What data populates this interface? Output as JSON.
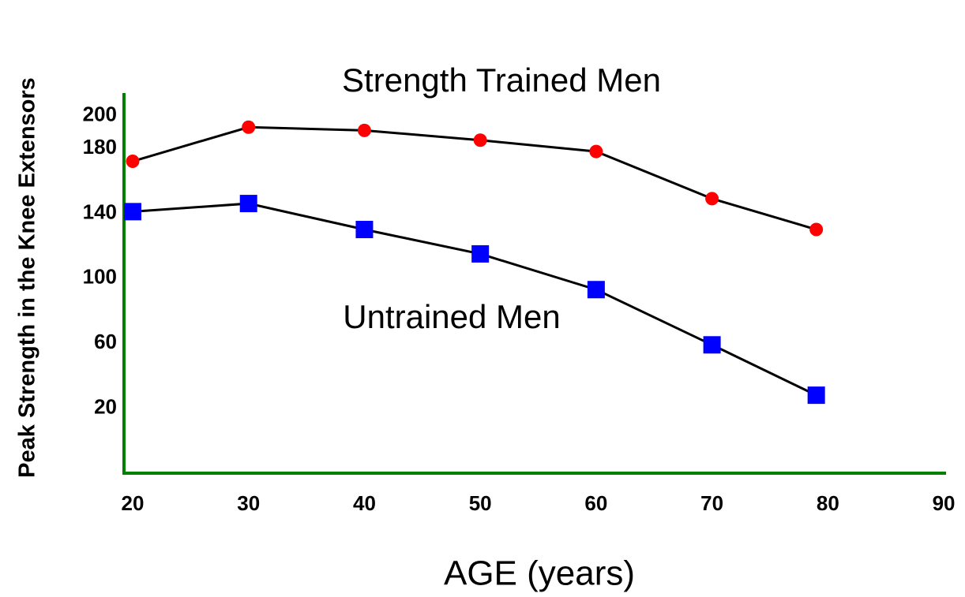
{
  "chart_data": {
    "type": "line",
    "xlabel": "AGE (years)",
    "ylabel": "Peak Strength in the Knee Extensors",
    "annotations": [
      "Strength Trained Men",
      "Untrained Men"
    ],
    "x": [
      20,
      30,
      40,
      50,
      60,
      70,
      79
    ],
    "series": [
      {
        "color": "#ff0000",
        "marker": "circle",
        "values": [
          172,
          193,
          191,
          185,
          178,
          149,
          130
        ]
      },
      {
        "color": "#0000ff",
        "marker": "square",
        "values": [
          141,
          146,
          130,
          115,
          93,
          59,
          28
        ]
      }
    ],
    "line_color": "#000000",
    "axis_color": "#008000",
    "xlim": [
      19.25,
      90.2
    ],
    "xticks": [
      20,
      30,
      40,
      50,
      60,
      70,
      80,
      90
    ],
    "ylim": [
      -20,
      214
    ],
    "yticks": [
      20,
      60,
      100,
      140,
      180,
      200
    ],
    "grid": false
  }
}
